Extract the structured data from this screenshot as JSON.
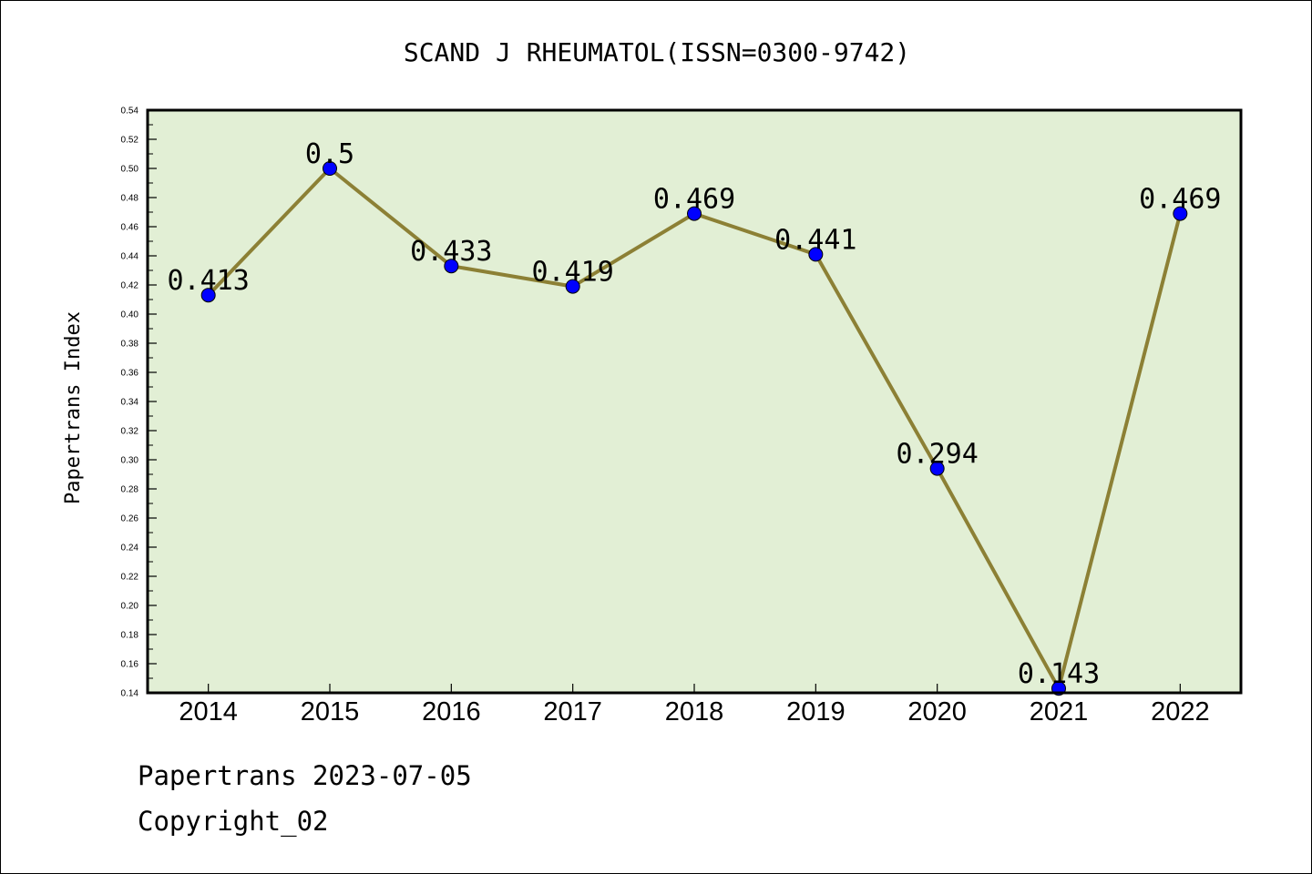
{
  "chart_data": {
    "type": "line",
    "title": "SCAND J RHEUMATOL(ISSN=0300-9742)",
    "xlabel": "",
    "ylabel": "Papertrans Index",
    "categories": [
      "2014",
      "2015",
      "2016",
      "2017",
      "2018",
      "2019",
      "2020",
      "2021",
      "2022"
    ],
    "series": [
      {
        "values": [
          0.413,
          0.5,
          0.433,
          0.419,
          0.469,
          0.441,
          0.294,
          0.143,
          0.469
        ],
        "data_labels": [
          "0.413",
          "0.5",
          "0.433",
          "0.419",
          "0.469",
          "0.441",
          "0.294",
          "0.143",
          "0.469"
        ]
      }
    ],
    "ylim": [
      0.14,
      0.54
    ],
    "yticks": [
      "0.14",
      "0.16",
      "0.18",
      "0.20",
      "0.22",
      "0.24",
      "0.26",
      "0.28",
      "0.30",
      "0.32",
      "0.34",
      "0.36",
      "0.38",
      "0.40",
      "0.42",
      "0.44",
      "0.46",
      "0.48",
      "0.50",
      "0.52",
      "0.54"
    ],
    "grid": false,
    "legend": "none",
    "colors": {
      "plot_background": "#e2efd5",
      "line": "#8c8035",
      "marker": "#0000ff"
    }
  },
  "footer": {
    "source_line": "Papertrans 2023-07-05",
    "copyright": "Copyright_02"
  }
}
